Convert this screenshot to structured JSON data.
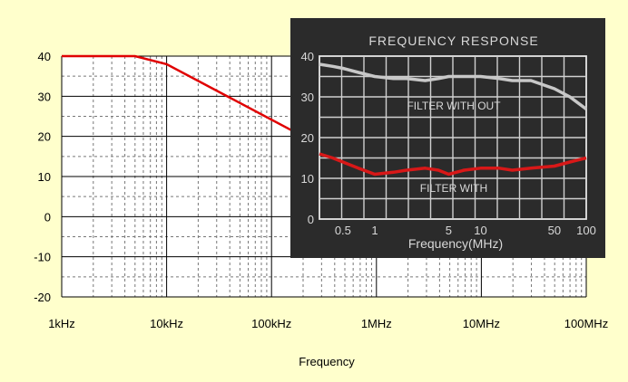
{
  "chart_data": [
    {
      "type": "line",
      "title": "",
      "xlabel": "Frequency",
      "ylabel": "",
      "x_scale": "log",
      "xlim": [
        "1kHz",
        "1GHz"
      ],
      "ylim": [
        -20,
        40
      ],
      "grid": "major solid, minor dashed",
      "xtick_labels": [
        "1kHz",
        "10kHz",
        "100kHz",
        "1MHz",
        "10MHz",
        "100MHz"
      ],
      "ytick_labels": [
        "40",
        "30",
        "20",
        "10",
        "0",
        "-10",
        "-20"
      ],
      "series": [
        {
          "color": "#e00000",
          "x_hz": [
            1000,
            5000,
            10000,
            200000
          ],
          "y": [
            40,
            40,
            38,
            20
          ]
        }
      ]
    },
    {
      "type": "line",
      "title": "FREQUENCY RESPONSE",
      "xlabel": "Frequency(MHz)",
      "ylabel": "",
      "x_scale": "log",
      "xlim": [
        0.3,
        100
      ],
      "ylim": [
        0,
        40
      ],
      "xtick_labels": [
        "0.5",
        "1",
        "5",
        "10",
        "50",
        "100"
      ],
      "ytick_labels": [
        "40",
        "30",
        "20",
        "10",
        "0"
      ],
      "series": [
        {
          "name": "FILTER WITH OUT",
          "color": "#c8c8c8",
          "x": [
            0.3,
            0.4,
            0.5,
            0.7,
            1,
            1.5,
            2,
            3,
            4,
            5,
            7,
            10,
            15,
            20,
            30,
            50,
            70,
            100
          ],
          "y": [
            38,
            37.5,
            37,
            36,
            35,
            34.5,
            34.5,
            34,
            34.5,
            35,
            35,
            35,
            34.5,
            34,
            34,
            32,
            30,
            27
          ]
        },
        {
          "name": "FILTER WITH",
          "color": "#d81818",
          "x": [
            0.3,
            0.4,
            0.5,
            0.7,
            1,
            1.5,
            2,
            3,
            4,
            5,
            7,
            10,
            15,
            20,
            30,
            50,
            70,
            100
          ],
          "y": [
            16,
            15,
            14,
            12.5,
            11,
            11.5,
            12,
            12.5,
            12,
            11,
            12,
            12.5,
            12.5,
            12,
            12.5,
            13,
            14,
            15
          ]
        }
      ]
    }
  ]
}
